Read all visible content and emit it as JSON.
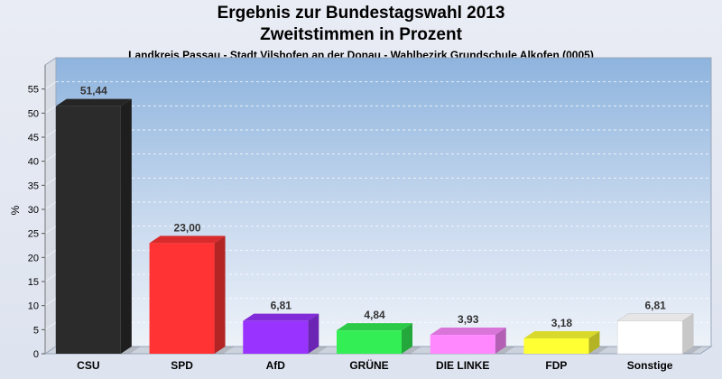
{
  "chart_data": {
    "type": "bar",
    "title": "Ergebnis zur Bundestagswahl 2013",
    "subtitle_main": "Zweitstimmen in Prozent",
    "subtitle": "Landkreis Passau - Stadt Vilshofen an der Donau - Wahlbezirk Grundschule Alkofen (0005)",
    "ylabel": "%",
    "ylim": [
      0,
      60
    ],
    "yticks": [
      0,
      5,
      10,
      15,
      20,
      25,
      30,
      35,
      40,
      45,
      50,
      55
    ],
    "categories": [
      "CSU",
      "SPD",
      "AfD",
      "GRÜNE",
      "DIE LINKE",
      "FDP",
      "Sonstige"
    ],
    "values": [
      51.44,
      23.0,
      6.81,
      4.84,
      3.93,
      3.18,
      6.81
    ],
    "value_labels": [
      "51,44",
      "23,00",
      "6,81",
      "4,84",
      "3,93",
      "3,18",
      "6,81"
    ],
    "colors": [
      "#2b2b2b",
      "#ff3333",
      "#9933ff",
      "#33ee55",
      "#ff88ff",
      "#ffff33",
      "#ffffff"
    ],
    "grid": true,
    "legend": "none"
  }
}
